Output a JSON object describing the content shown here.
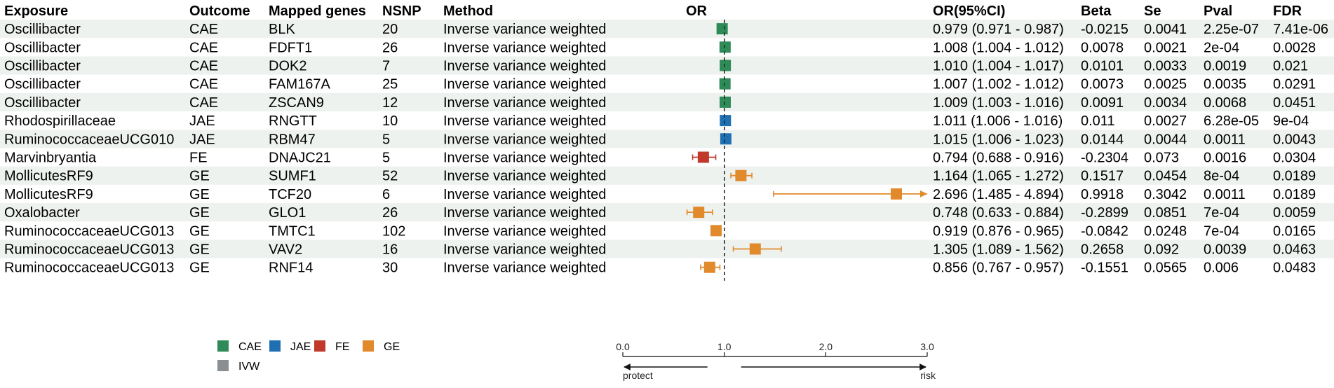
{
  "headers": {
    "exposure": "Exposure",
    "outcome": "Outcome",
    "genes": "Mapped genes",
    "nsnp": "NSNP",
    "method": "Method",
    "or": "OR",
    "or_ci": "OR(95%CI)",
    "beta": "Beta",
    "se": "Se",
    "pval": "Pval",
    "fdr": "FDR"
  },
  "colors": {
    "CAE": "#2e8b57",
    "JAE": "#1f6fb2",
    "FE": "#c0392b",
    "GE": "#e08a2c",
    "IVW": "#8a8f94",
    "stripe": "#eef2ef"
  },
  "legend": [
    "CAE",
    "JAE",
    "FE",
    "GE",
    "IVW"
  ],
  "axis_labels": {
    "left": "protect",
    "right": "risk"
  },
  "chart_data": {
    "type": "forest",
    "title": "",
    "xlabel": "OR",
    "xlim": [
      0.0,
      3.0
    ],
    "xticks": [
      "0.0",
      "1.0",
      "2.0",
      "3.0"
    ],
    "reference_line": 1.0,
    "rows": [
      {
        "exposure": "Oscillibacter",
        "outcome": "CAE",
        "gene": "BLK",
        "nsnp": "20",
        "method": "Inverse variance weighted",
        "or": 0.979,
        "lo": 0.971,
        "hi": 0.987,
        "or_ci": "0.979 (0.971 - 0.987)",
        "beta": "-0.0215",
        "se": "0.0041",
        "pval": "2.25e-07",
        "fdr": "7.41e-06"
      },
      {
        "exposure": "Oscillibacter",
        "outcome": "CAE",
        "gene": "FDFT1",
        "nsnp": "26",
        "method": "Inverse variance weighted",
        "or": 1.008,
        "lo": 1.004,
        "hi": 1.012,
        "or_ci": "1.008 (1.004 - 1.012)",
        "beta": "0.0078",
        "se": "0.0021",
        "pval": "2e-04",
        "fdr": "0.0028"
      },
      {
        "exposure": "Oscillibacter",
        "outcome": "CAE",
        "gene": "DOK2",
        "nsnp": "7",
        "method": "Inverse variance weighted",
        "or": 1.01,
        "lo": 1.004,
        "hi": 1.017,
        "or_ci": "1.010 (1.004 - 1.017)",
        "beta": "0.0101",
        "se": "0.0033",
        "pval": "0.0019",
        "fdr": "0.021"
      },
      {
        "exposure": "Oscillibacter",
        "outcome": "CAE",
        "gene": "FAM167A",
        "nsnp": "25",
        "method": "Inverse variance weighted",
        "or": 1.007,
        "lo": 1.002,
        "hi": 1.012,
        "or_ci": "1.007 (1.002 - 1.012)",
        "beta": "0.0073",
        "se": "0.0025",
        "pval": "0.0035",
        "fdr": "0.0291"
      },
      {
        "exposure": "Oscillibacter",
        "outcome": "CAE",
        "gene": "ZSCAN9",
        "nsnp": "12",
        "method": "Inverse variance weighted",
        "or": 1.009,
        "lo": 1.003,
        "hi": 1.016,
        "or_ci": "1.009 (1.003 - 1.016)",
        "beta": "0.0091",
        "se": "0.0034",
        "pval": "0.0068",
        "fdr": "0.0451"
      },
      {
        "exposure": "Rhodospirillaceae",
        "outcome": "JAE",
        "gene": "RNGTT",
        "nsnp": "10",
        "method": "Inverse variance weighted",
        "or": 1.011,
        "lo": 1.006,
        "hi": 1.016,
        "or_ci": "1.011 (1.006 - 1.016)",
        "beta": "0.011",
        "se": "0.0027",
        "pval": "6.28e-05",
        "fdr": "9e-04"
      },
      {
        "exposure": "RuminococcaceaeUCG010",
        "outcome": "JAE",
        "gene": "RBM47",
        "nsnp": "5",
        "method": "Inverse variance weighted",
        "or": 1.015,
        "lo": 1.006,
        "hi": 1.023,
        "or_ci": "1.015 (1.006 - 1.023)",
        "beta": "0.0144",
        "se": "0.0044",
        "pval": "0.0011",
        "fdr": "0.0043"
      },
      {
        "exposure": "Marvinbryantia",
        "outcome": "FE",
        "gene": "DNAJC21",
        "nsnp": "5",
        "method": "Inverse variance weighted",
        "or": 0.794,
        "lo": 0.688,
        "hi": 0.916,
        "or_ci": "0.794 (0.688 - 0.916)",
        "beta": "-0.2304",
        "se": "0.073",
        "pval": "0.0016",
        "fdr": "0.0304"
      },
      {
        "exposure": "MollicutesRF9",
        "outcome": "GE",
        "gene": "SUMF1",
        "nsnp": "52",
        "method": "Inverse variance weighted",
        "or": 1.164,
        "lo": 1.065,
        "hi": 1.272,
        "or_ci": "1.164 (1.065 - 1.272)",
        "beta": "0.1517",
        "se": "0.0454",
        "pval": "8e-04",
        "fdr": "0.0189"
      },
      {
        "exposure": "MollicutesRF9",
        "outcome": "GE",
        "gene": "TCF20",
        "nsnp": "6",
        "method": "Inverse variance weighted",
        "or": 2.696,
        "lo": 1.485,
        "hi": 4.894,
        "or_ci": "2.696 (1.485 - 4.894)",
        "beta": "0.9918",
        "se": "0.3042",
        "pval": "0.0011",
        "fdr": "0.0189"
      },
      {
        "exposure": "Oxalobacter",
        "outcome": "GE",
        "gene": "GLO1",
        "nsnp": "26",
        "method": "Inverse variance weighted",
        "or": 0.748,
        "lo": 0.633,
        "hi": 0.884,
        "or_ci": "0.748 (0.633 - 0.884)",
        "beta": "-0.2899",
        "se": "0.0851",
        "pval": "7e-04",
        "fdr": "0.0059"
      },
      {
        "exposure": "RuminococcaceaeUCG013",
        "outcome": "GE",
        "gene": "TMTC1",
        "nsnp": "102",
        "method": "Inverse variance weighted",
        "or": 0.919,
        "lo": 0.876,
        "hi": 0.965,
        "or_ci": "0.919 (0.876 - 0.965)",
        "beta": "-0.0842",
        "se": "0.0248",
        "pval": "7e-04",
        "fdr": "0.0165"
      },
      {
        "exposure": "RuminococcaceaeUCG013",
        "outcome": "GE",
        "gene": "VAV2",
        "nsnp": "16",
        "method": "Inverse variance weighted",
        "or": 1.305,
        "lo": 1.089,
        "hi": 1.562,
        "or_ci": "1.305 (1.089 - 1.562)",
        "beta": "0.2658",
        "se": "0.092",
        "pval": "0.0039",
        "fdr": "0.0463"
      },
      {
        "exposure": "RuminococcaceaeUCG013",
        "outcome": "GE",
        "gene": "RNF14",
        "nsnp": "30",
        "method": "Inverse variance weighted",
        "or": 0.856,
        "lo": 0.767,
        "hi": 0.957,
        "or_ci": "0.856 (0.767 - 0.957)",
        "beta": "-0.1551",
        "se": "0.0565",
        "pval": "0.006",
        "fdr": "0.0483"
      }
    ]
  }
}
